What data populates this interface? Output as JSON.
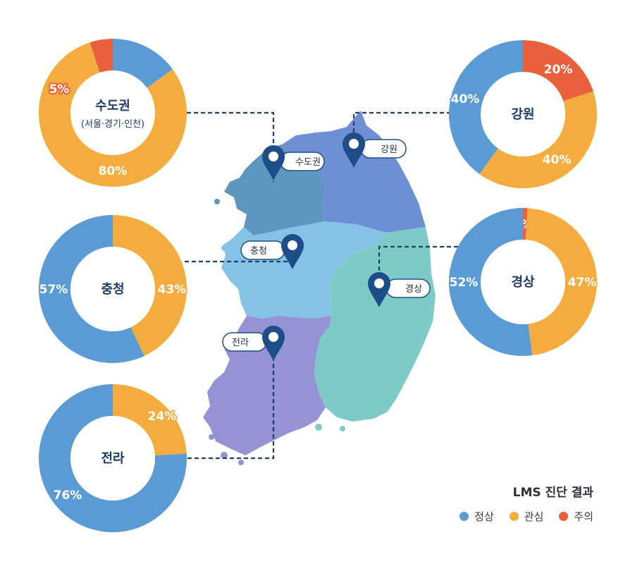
{
  "colors": {
    "normal": "#5b9bd5",
    "interest": "#f4ac3e",
    "caution": "#e9603c",
    "leader": "#1d3f69",
    "pin": "#1d4e89"
  },
  "legend": {
    "title": "LMS 진단 결과",
    "items": [
      {
        "label": "정상",
        "color": "#5b9bd5"
      },
      {
        "label": "관심",
        "color": "#f4ac3e"
      },
      {
        "label": "주의",
        "color": "#e9603c"
      }
    ]
  },
  "chart_data": [
    {
      "type": "pie",
      "title": "수도권",
      "subtitle": "(서울·경기·인천)",
      "slices": [
        {
          "category": "정상",
          "value": 15,
          "label": "15%"
        },
        {
          "category": "관심",
          "value": 80,
          "label": "80%"
        },
        {
          "category": "주의",
          "value": 5,
          "label": "5%"
        }
      ]
    },
    {
      "type": "pie",
      "title": "강원",
      "subtitle": "",
      "slices": [
        {
          "category": "주의",
          "value": 20,
          "label": "20%"
        },
        {
          "category": "관심",
          "value": 40,
          "label": "40%"
        },
        {
          "category": "정상",
          "value": 40,
          "label": "40%"
        }
      ]
    },
    {
      "type": "pie",
      "title": "충청",
      "subtitle": "",
      "slices": [
        {
          "category": "관심",
          "value": 43,
          "label": "43%"
        },
        {
          "category": "정상",
          "value": 57,
          "label": "57%"
        }
      ]
    },
    {
      "type": "pie",
      "title": "경상",
      "subtitle": "",
      "slices": [
        {
          "category": "주의",
          "value": 1,
          "label": "1%"
        },
        {
          "category": "관심",
          "value": 47,
          "label": "47%"
        },
        {
          "category": "정상",
          "value": 52,
          "label": "52%"
        }
      ]
    },
    {
      "type": "pie",
      "title": "전라",
      "subtitle": "",
      "slices": [
        {
          "category": "관심",
          "value": 24,
          "label": "24%"
        },
        {
          "category": "정상",
          "value": 76,
          "label": "76%"
        }
      ]
    }
  ],
  "map_pins": [
    {
      "label": "수도권"
    },
    {
      "label": "강원"
    },
    {
      "label": "충청"
    },
    {
      "label": "경상"
    },
    {
      "label": "전라"
    }
  ]
}
